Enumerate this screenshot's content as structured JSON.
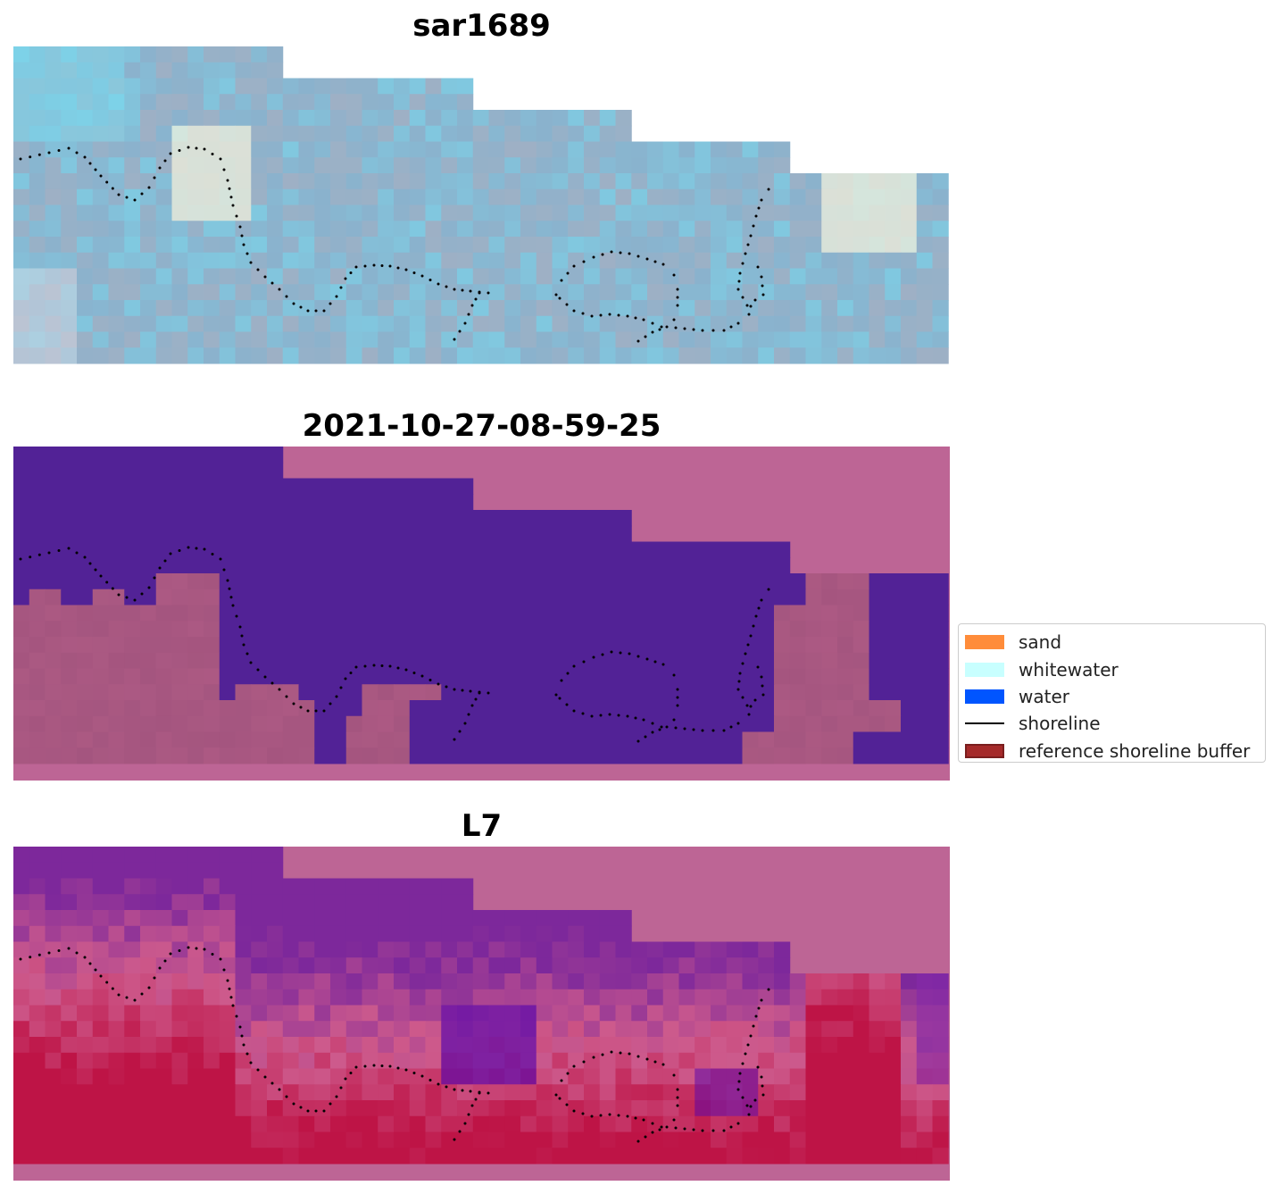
{
  "panels": [
    {
      "id": "rgb",
      "title": "sar1689"
    },
    {
      "id": "classified",
      "title": "2021-10-27-08-59-25"
    },
    {
      "id": "index",
      "title": "L7"
    }
  ],
  "legend": {
    "items": [
      {
        "label": "sand",
        "color": "#ff8c3a",
        "kind": "patch"
      },
      {
        "label": "whitewater",
        "color": "#c8ffff",
        "kind": "patch"
      },
      {
        "label": "water",
        "color": "#0055ff",
        "kind": "patch"
      },
      {
        "label": "shoreline",
        "color": "#000000",
        "kind": "line"
      },
      {
        "label": "reference shoreline buffer",
        "color": "#a52a2a",
        "kind": "patch-outlined"
      }
    ]
  },
  "colors": {
    "buffer_overlay": "#bd6595",
    "classified_water": "#522296",
    "classified_land": "#a4557f",
    "shoreline_dots": "#000000"
  }
}
